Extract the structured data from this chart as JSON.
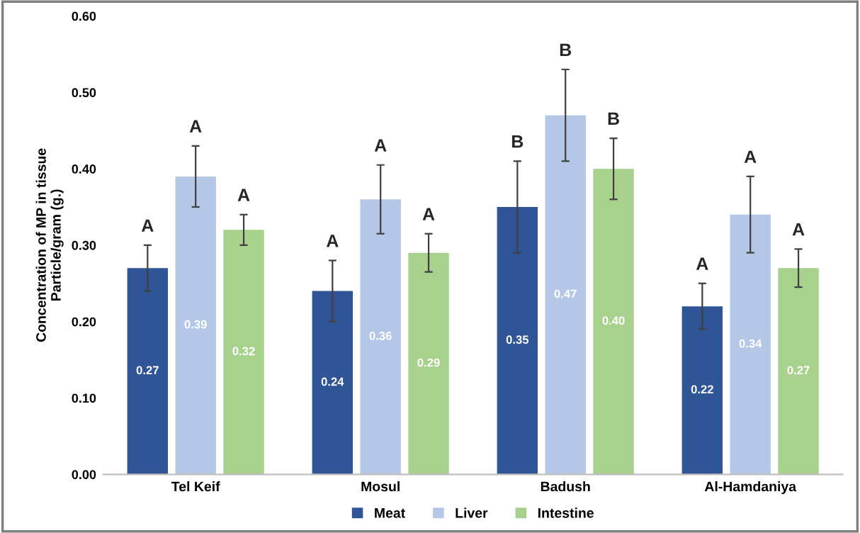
{
  "chart_data": {
    "type": "bar",
    "ylabel": "Concentration of MP in tissue\nParticle/gram (g.)",
    "categories": [
      "Tel Keif",
      "Mosul",
      "Badush",
      "Al-Hamdaniya"
    ],
    "series": [
      {
        "name": "Meat",
        "color": "#2f5597",
        "values": [
          0.27,
          0.24,
          0.35,
          0.22
        ],
        "value_labels": [
          "0.27",
          "0.24",
          "0.35",
          "0.22"
        ],
        "errors": [
          0.03,
          0.04,
          0.06,
          0.03
        ]
      },
      {
        "name": "Liver",
        "color": "#b4c7e7",
        "values": [
          0.39,
          0.36,
          0.47,
          0.34
        ],
        "value_labels": [
          "0.39",
          "0.36",
          "0.47",
          "0.34"
        ],
        "errors": [
          0.04,
          0.045,
          0.06,
          0.05
        ]
      },
      {
        "name": "Intestine",
        "color": "#a9d18e",
        "values": [
          0.32,
          0.29,
          0.4,
          0.27
        ],
        "value_labels": [
          "0.32",
          "0.29",
          "0.40",
          "0.27"
        ],
        "errors": [
          0.02,
          0.025,
          0.04,
          0.025
        ]
      }
    ],
    "annotations": [
      "A",
      "A",
      "A",
      "A",
      "A",
      "A",
      "B",
      "B",
      "B",
      "A",
      "A",
      "A"
    ],
    "ylim": [
      0,
      0.6
    ],
    "yticks": [
      {
        "value": 0,
        "label": "0.00"
      },
      {
        "value": 0.1,
        "label": "0.10"
      },
      {
        "value": 0.2,
        "label": "0.20"
      },
      {
        "value": 0.3,
        "label": "0.30"
      },
      {
        "value": 0.4,
        "label": "0.40"
      },
      {
        "value": 0.5,
        "label": "0.50"
      },
      {
        "value": 0.6,
        "label": "0.60"
      }
    ],
    "grid": false,
    "legend": "bottom"
  }
}
